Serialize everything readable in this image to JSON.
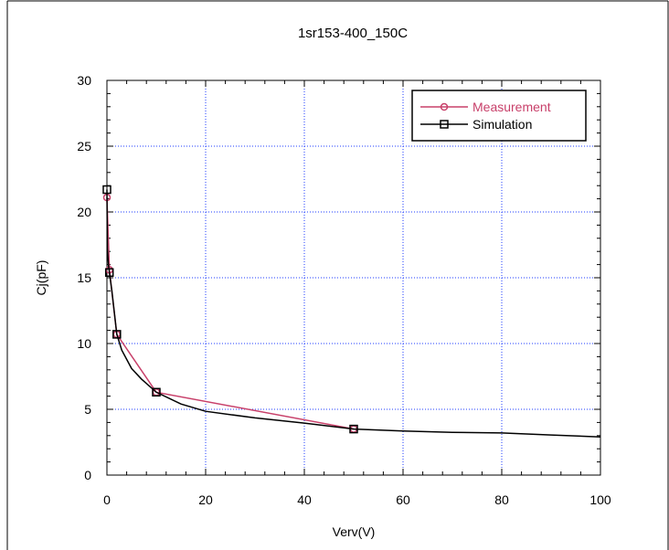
{
  "chart_data": {
    "type": "line",
    "title": "1sr153-400_150C",
    "xlabel": "Verv(V)",
    "ylabel": "Cj(pF)",
    "xlim": [
      0,
      100
    ],
    "ylim": [
      0,
      30
    ],
    "x_ticks": [
      "0",
      "20",
      "40",
      "60",
      "80",
      "100"
    ],
    "y_ticks": [
      "0",
      "5",
      "10",
      "15",
      "20",
      "25",
      "30"
    ],
    "grid": true,
    "legend_position": "top-right",
    "series": [
      {
        "name": "Measurement",
        "color": "#c8406a",
        "marker": "circle",
        "x": [
          0,
          0.5,
          2,
          10,
          50
        ],
        "y": [
          21.1,
          15.6,
          10.7,
          6.3,
          3.5
        ]
      },
      {
        "name": "Simulation",
        "color": "#000000",
        "marker": "square",
        "x": [
          0,
          0.1,
          0.3,
          0.5,
          1,
          2,
          3,
          5,
          7,
          10,
          15,
          20,
          30,
          40,
          50,
          60,
          70,
          80,
          90,
          100
        ],
        "y": [
          21.7,
          17.2,
          16.0,
          15.4,
          14.0,
          10.7,
          9.5,
          8.1,
          7.3,
          6.3,
          5.4,
          4.85,
          4.35,
          3.95,
          3.5,
          3.35,
          3.25,
          3.2,
          3.05,
          2.9
        ],
        "marker_x": [
          0,
          0.5,
          2,
          10,
          50
        ],
        "marker_y": [
          21.7,
          15.4,
          10.7,
          6.3,
          3.5
        ]
      }
    ]
  }
}
